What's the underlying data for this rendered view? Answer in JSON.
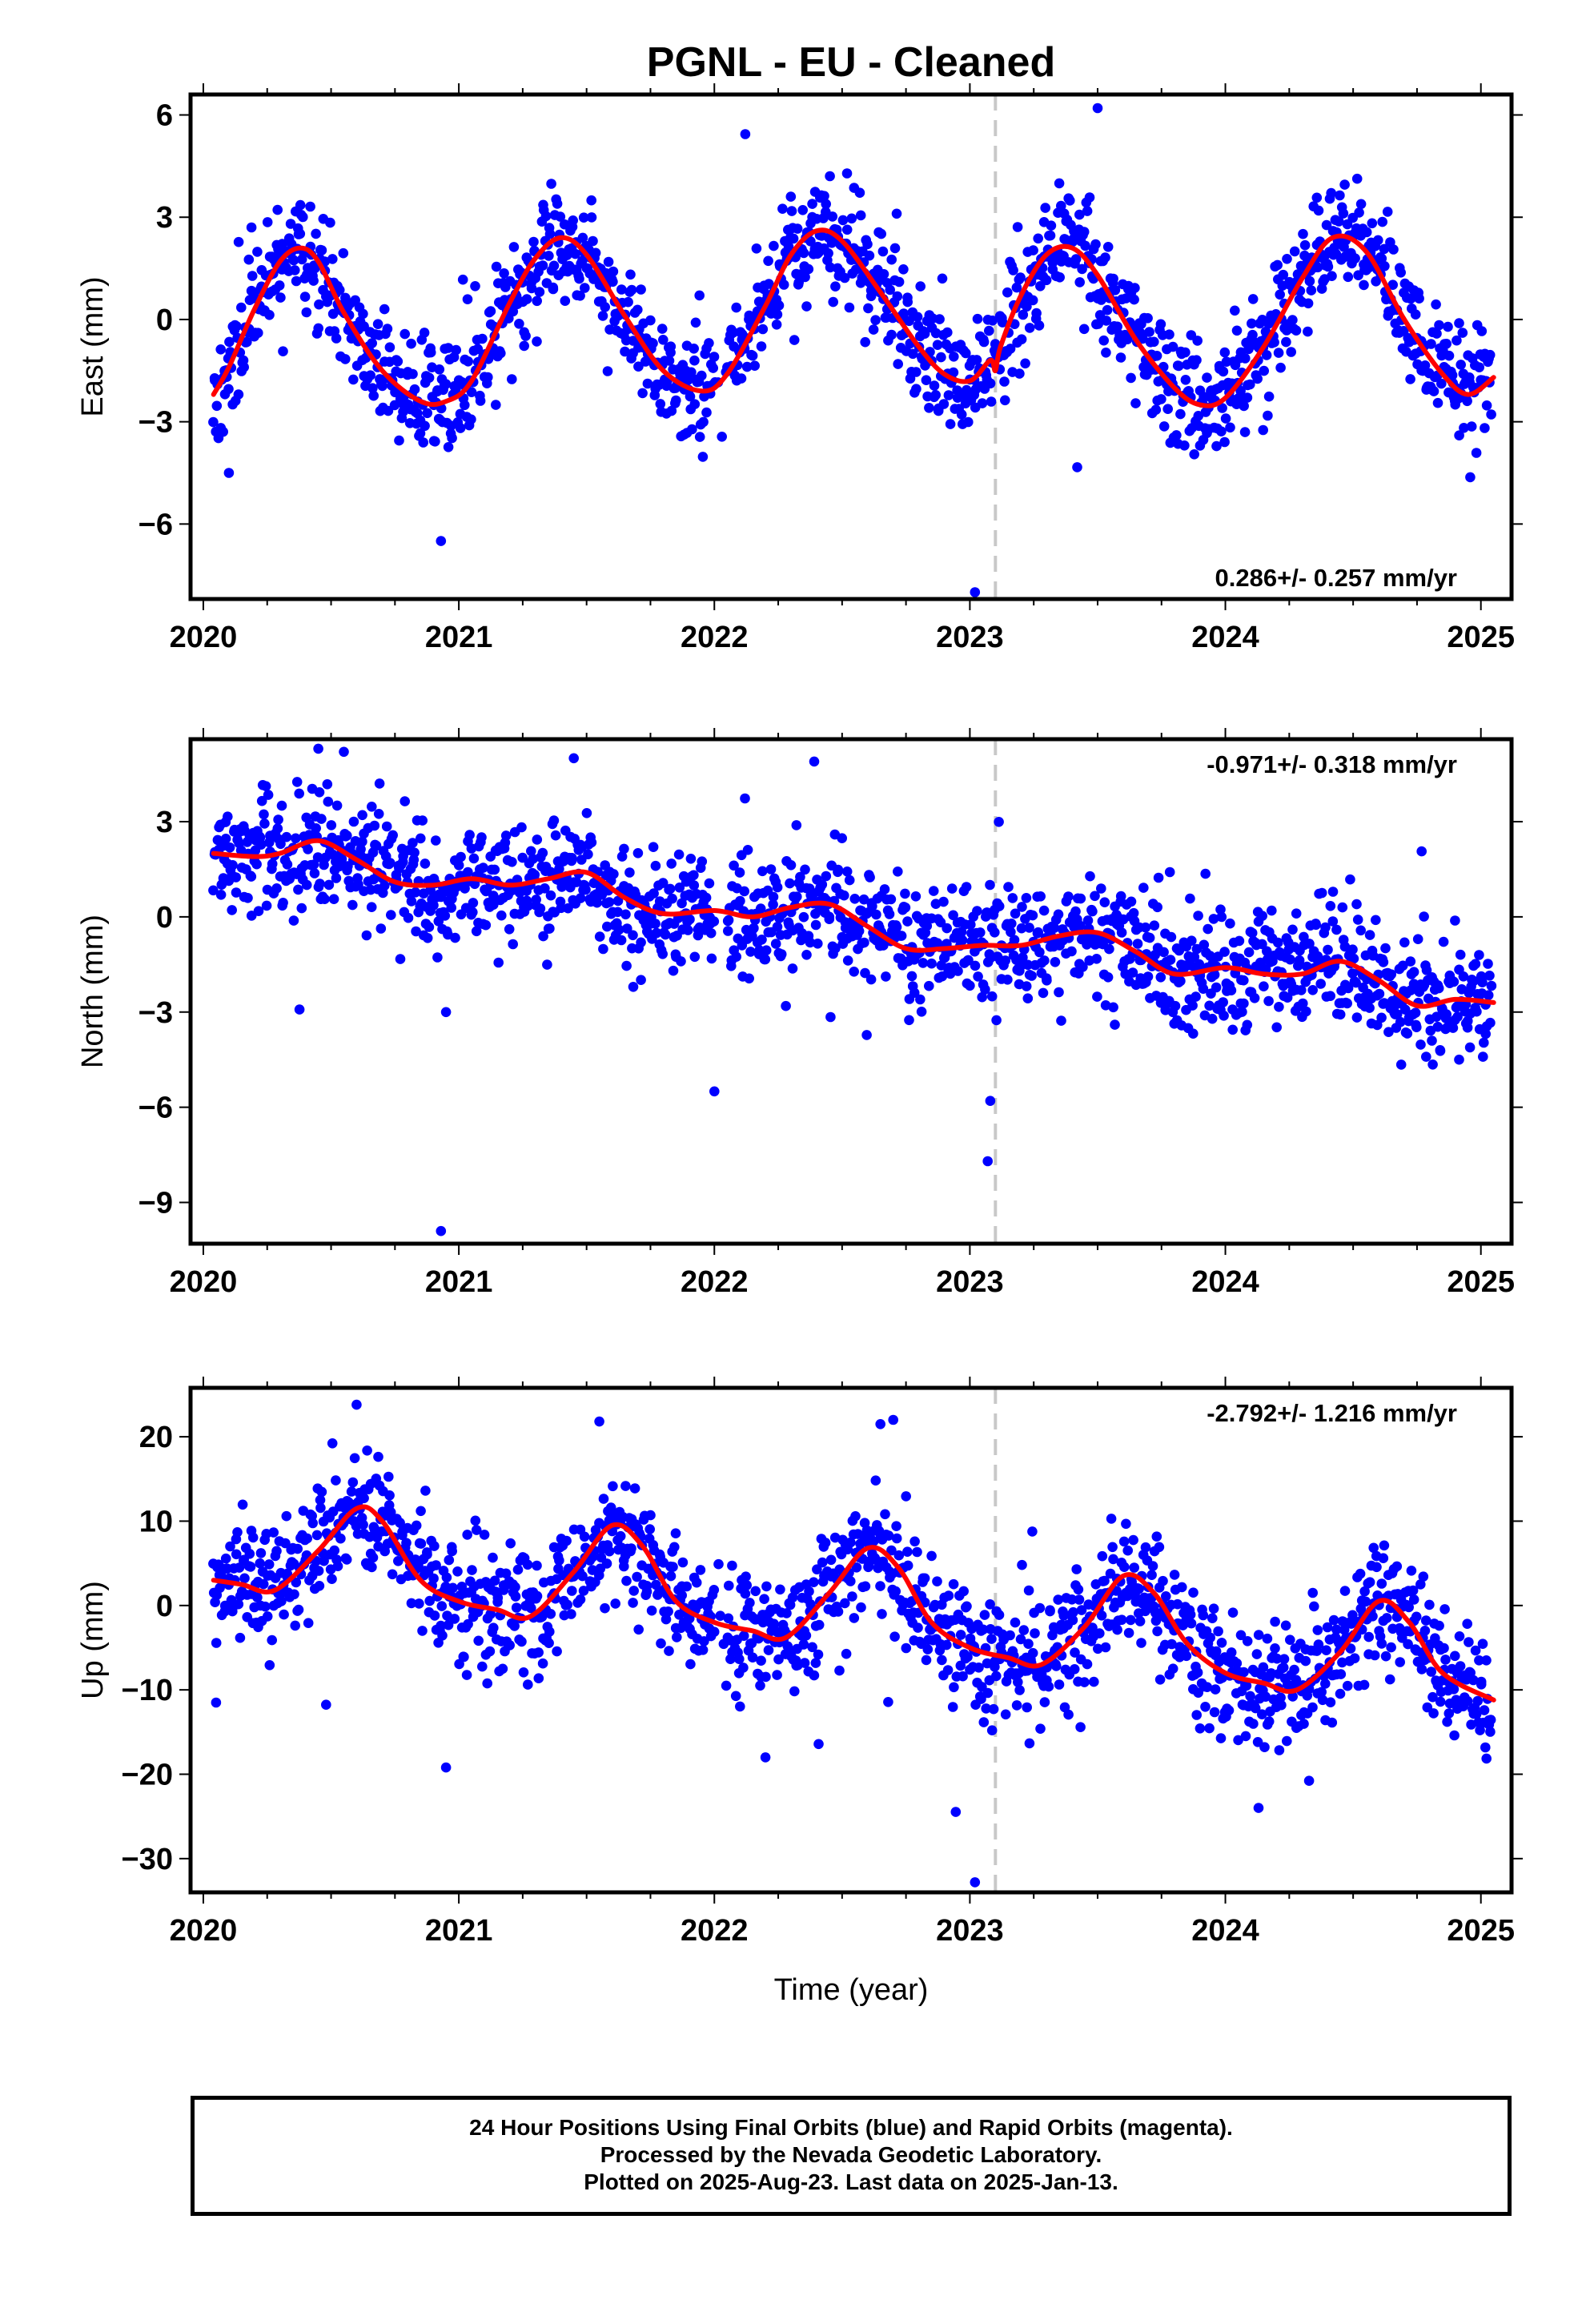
{
  "figure": {
    "title": "PGNL  - EU - Cleaned",
    "x_axis_label": "Time (year)",
    "outlier_line_x": 2023.1,
    "colors": {
      "points": "#0000ff",
      "fit": "#ff0000",
      "step_line": "#c8c8c8"
    }
  },
  "chart_data": [
    {
      "type": "scatter",
      "name": "east",
      "ylabel": "East (mm)",
      "xlim": [
        2019.95,
        2025.12
      ],
      "ylim": [
        -8.2,
        6.6
      ],
      "x_ticks": [
        2020,
        2021,
        2022,
        2023,
        2024,
        2025
      ],
      "x_tick_labels": [
        "2020",
        "2021",
        "2022",
        "2023",
        "2024",
        "2025"
      ],
      "y_ticks": [
        -6,
        -3,
        0,
        3,
        6
      ],
      "y_tick_labels": [
        "−6",
        "−3",
        "0",
        "3",
        "6"
      ],
      "rate_annotation": "0.286+/- 0.257 mm/yr",
      "rate_position": "bottom-right",
      "fit": {
        "x": [
          2020.04,
          2020.1,
          2020.2,
          2020.3,
          2020.38,
          2020.45,
          2020.55,
          2020.7,
          2020.85,
          2020.95,
          2021.05,
          2021.2,
          2021.3,
          2021.4,
          2021.5,
          2021.65,
          2021.8,
          2021.95,
          2022.05,
          2022.2,
          2022.3,
          2022.4,
          2022.5,
          2022.65,
          2022.8,
          2022.9,
          2023.0,
          2023.08,
          2023.1,
          2023.12,
          2023.2,
          2023.3,
          2023.4,
          2023.5,
          2023.65,
          2023.8,
          2023.9,
          2024.0,
          2024.15,
          2024.3,
          2024.42,
          2024.55,
          2024.7,
          2024.85,
          2024.95,
          2025.05
        ],
        "y": [
          -2.2,
          -1.4,
          0.3,
          1.7,
          2.1,
          1.7,
          0.2,
          -1.5,
          -2.4,
          -2.4,
          -1.8,
          0.5,
          1.8,
          2.4,
          1.9,
          0.1,
          -1.5,
          -2.1,
          -1.6,
          0.4,
          1.9,
          2.6,
          2.3,
          0.8,
          -0.8,
          -1.6,
          -1.8,
          -1.2,
          -1.5,
          -0.8,
          0.7,
          1.9,
          2.1,
          1.3,
          -0.6,
          -2.0,
          -2.5,
          -2.3,
          -0.8,
          1.2,
          2.4,
          2.0,
          0.0,
          -1.6,
          -2.2,
          -1.7
        ]
      },
      "scatter": {
        "n": 1500,
        "seed": 11,
        "noise": 0.85,
        "outlier_rate": 0.01,
        "outlier_spread": 3.0,
        "gaps": [
          [
            2022.0,
            2022.05
          ]
        ],
        "extra_points": [
          [
            2023.02,
            -8.0
          ],
          [
            2023.5,
            6.2
          ],
          [
            2020.93,
            -6.5
          ],
          [
            2020.1,
            -4.5
          ]
        ]
      }
    },
    {
      "type": "scatter",
      "name": "north",
      "ylabel": "North (mm)",
      "xlim": [
        2019.95,
        2025.12
      ],
      "ylim": [
        -10.3,
        5.6
      ],
      "x_ticks": [
        2020,
        2021,
        2022,
        2023,
        2024,
        2025
      ],
      "x_tick_labels": [
        "2020",
        "2021",
        "2022",
        "2023",
        "2024",
        "2025"
      ],
      "y_ticks": [
        -9,
        -6,
        -3,
        0,
        3
      ],
      "y_tick_labels": [
        "−9",
        "−6",
        "−3",
        "0",
        "3"
      ],
      "rate_annotation": "-0.971+/- 0.318 mm/yr",
      "rate_position": "top-right",
      "fit": {
        "x": [
          2020.04,
          2020.2,
          2020.3,
          2020.45,
          2020.6,
          2020.75,
          2020.9,
          2021.05,
          2021.2,
          2021.35,
          2021.5,
          2021.65,
          2021.8,
          2022.0,
          2022.15,
          2022.3,
          2022.45,
          2022.6,
          2022.75,
          2022.9,
          2023.05,
          2023.2,
          2023.35,
          2023.5,
          2023.65,
          2023.8,
          2024.0,
          2024.15,
          2024.3,
          2024.45,
          2024.6,
          2024.75,
          2024.9,
          2025.05
        ],
        "y": [
          2.0,
          1.9,
          2.0,
          2.4,
          1.8,
          1.1,
          1.0,
          1.2,
          1.0,
          1.2,
          1.4,
          0.6,
          0.1,
          0.2,
          0.0,
          0.3,
          0.4,
          -0.3,
          -1.0,
          -1.0,
          -0.9,
          -0.9,
          -0.6,
          -0.5,
          -1.1,
          -1.8,
          -1.6,
          -1.8,
          -1.8,
          -1.4,
          -2.0,
          -2.8,
          -2.6,
          -2.7
        ]
      },
      "scatter": {
        "n": 1500,
        "seed": 23,
        "noise": 0.9,
        "outlier_rate": 0.01,
        "outlier_spread": 3.0,
        "gaps": [
          [
            2022.0,
            2022.05
          ]
        ],
        "extra_points": [
          [
            2020.93,
            -9.9
          ],
          [
            2023.07,
            -7.7
          ],
          [
            2023.08,
            -5.8
          ],
          [
            2022.0,
            -5.5
          ],
          [
            2020.45,
            5.3
          ],
          [
            2020.55,
            5.2
          ],
          [
            2021.45,
            5.0
          ],
          [
            2020.95,
            -3.0
          ]
        ]
      }
    },
    {
      "type": "scatter",
      "name": "up",
      "ylabel": "Up (mm)",
      "xlim": [
        2019.95,
        2025.12
      ],
      "ylim": [
        -34.0,
        25.8
      ],
      "x_ticks": [
        2020,
        2021,
        2022,
        2023,
        2024,
        2025
      ],
      "x_tick_labels": [
        "2020",
        "2021",
        "2022",
        "2023",
        "2024",
        "2025"
      ],
      "y_ticks": [
        -30,
        -20,
        -10,
        0,
        10,
        20
      ],
      "y_tick_labels": [
        "−30",
        "−20",
        "−10",
        "0",
        "10",
        "20"
      ],
      "rate_annotation": "-2.792+/- 1.216 mm/yr",
      "rate_position": "top-right",
      "fit": {
        "x": [
          2020.04,
          2020.15,
          2020.28,
          2020.45,
          2020.6,
          2020.7,
          2020.85,
          2021.0,
          2021.15,
          2021.28,
          2021.45,
          2021.6,
          2021.72,
          2021.85,
          2022.0,
          2022.15,
          2022.28,
          2022.45,
          2022.6,
          2022.72,
          2022.85,
          2023.0,
          2023.15,
          2023.28,
          2023.45,
          2023.6,
          2023.72,
          2023.85,
          2024.0,
          2024.15,
          2024.28,
          2024.45,
          2024.6,
          2024.72,
          2024.85,
          2025.05
        ],
        "y": [
          3.0,
          2.5,
          1.8,
          6.5,
          11.5,
          10.0,
          3.0,
          0.5,
          -0.5,
          -1.3,
          4.0,
          9.5,
          7.0,
          0.5,
          -2.0,
          -3.0,
          -3.8,
          1.5,
          6.8,
          4.5,
          -2.0,
          -5.0,
          -6.2,
          -7.0,
          -2.5,
          3.5,
          1.5,
          -4.5,
          -8.0,
          -9.2,
          -10.0,
          -5.5,
          0.5,
          -2.0,
          -8.0,
          -11.2
        ]
      },
      "scatter": {
        "n": 1500,
        "seed": 37,
        "noise": 3.6,
        "outlier_rate": 0.012,
        "outlier_spread": 3.0,
        "gaps": [
          [
            2022.0,
            2022.05
          ]
        ],
        "extra_points": [
          [
            2023.02,
            -32.8
          ],
          [
            2024.13,
            -24.0
          ],
          [
            2020.6,
            23.8
          ],
          [
            2021.55,
            21.8
          ],
          [
            2022.65,
            21.5
          ],
          [
            2022.7,
            22.0
          ],
          [
            2020.95,
            -19.2
          ],
          [
            2022.2,
            -18.0
          ],
          [
            2020.05,
            -11.5
          ]
        ]
      }
    }
  ],
  "footer": {
    "line1": "24 Hour Positions Using Final Orbits (blue) and Rapid Orbits (magenta).",
    "line2": "Processed by the Nevada Geodetic Laboratory.",
    "line3": "Plotted on 2025-Aug-23. Last data on 2025-Jan-13."
  }
}
